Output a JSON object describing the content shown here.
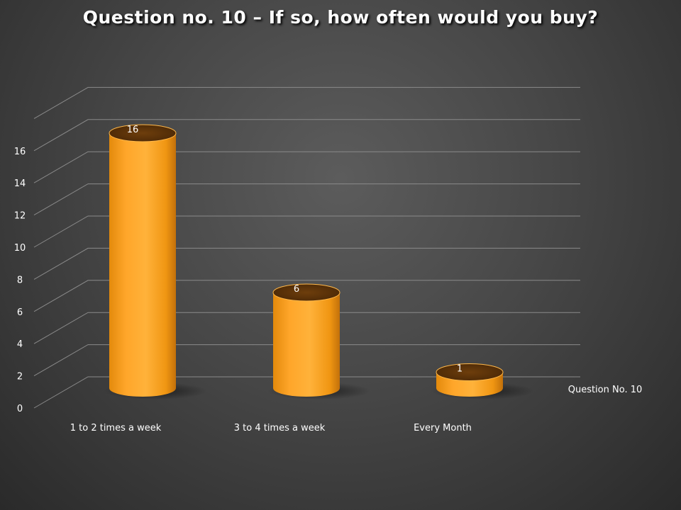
{
  "chart_data": {
    "type": "bar",
    "title": "Question no. 10 – If so, how often would you buy?",
    "categories": [
      "1 to 2 times a week",
      "3 to 4 times a week",
      "Every Month"
    ],
    "series": [
      {
        "name": "Question No. 10",
        "values": [
          16,
          6,
          1
        ]
      }
    ],
    "ylim": [
      0,
      16
    ],
    "yticks": [
      "0",
      "2",
      "4",
      "6",
      "8",
      "10",
      "12",
      "14",
      "16"
    ],
    "data_labels": [
      "16",
      "6",
      "1"
    ],
    "bar_color": "#ffa820",
    "bar_shape": "cylinder-3d",
    "grid": true,
    "legend_position": "right"
  }
}
